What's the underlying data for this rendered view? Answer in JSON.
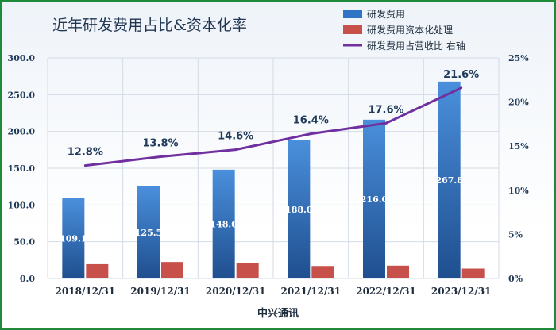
{
  "chart_data": {
    "type": "bar",
    "title": "近年研发费用占比&资本化率",
    "xlabel": "中兴通讯",
    "categories": [
      "2018/12/31",
      "2019/12/31",
      "2020/12/31",
      "2021/12/31",
      "2022/12/31",
      "2023/12/31"
    ],
    "series": [
      {
        "name": "研发费用",
        "type": "bar",
        "axis": "left",
        "color": "#2f74c4",
        "values": [
          109.1,
          125.5,
          148.0,
          188.0,
          216.0,
          267.8
        ]
      },
      {
        "name": "研发费用资本化处理",
        "type": "bar",
        "axis": "left",
        "color": "#c8504a",
        "values": [
          19.5,
          22.5,
          21.5,
          17.0,
          17.5,
          13.5
        ]
      },
      {
        "name": "研发费用占营收比 右轴",
        "type": "line",
        "axis": "right",
        "color": "#7030a0",
        "values": [
          12.8,
          13.8,
          14.6,
          16.4,
          17.6,
          21.6
        ]
      }
    ],
    "bar_labels": [
      "109.1",
      "125.5",
      "148.0",
      "188.0",
      "216.0",
      "267.8"
    ],
    "line_labels": [
      "12.8%",
      "13.8%",
      "14.6%",
      "16.4%",
      "17.6%",
      "21.6%"
    ],
    "y_left": {
      "ylim": [
        0,
        300
      ],
      "ticks": [
        "0.0",
        "50.0",
        "100.0",
        "150.0",
        "200.0",
        "250.0",
        "300.0"
      ]
    },
    "y_right": {
      "ylim": [
        0,
        25
      ],
      "ticks": [
        "0%",
        "5%",
        "10%",
        "15%",
        "20%",
        "25%"
      ]
    },
    "grid": true,
    "legend_position": "top-right"
  }
}
